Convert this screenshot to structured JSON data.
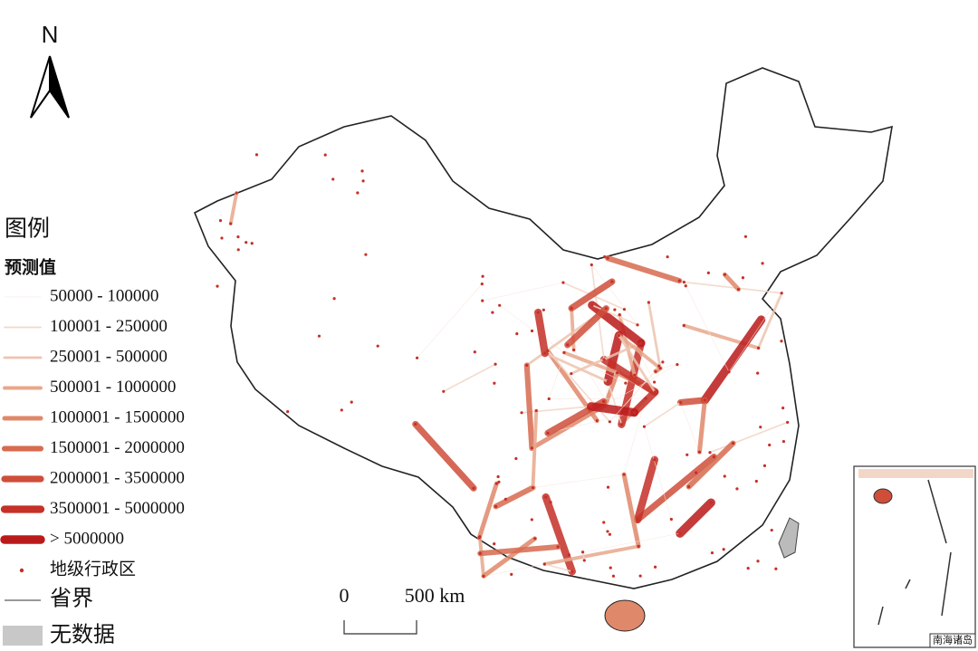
{
  "north_label": "N",
  "legend": {
    "title": "图例",
    "subtitle": "预测值",
    "items": [
      {
        "label": "50000 - 100000",
        "color": "#f6e6dc"
      },
      {
        "label": "100001 - 250000",
        "color": "#f2d7c8"
      },
      {
        "label": "250001 - 500000",
        "color": "#edc4b0"
      },
      {
        "label": "500001 - 1000000",
        "color": "#e8a88c"
      },
      {
        "label": "1000001 - 1500000",
        "color": "#e0886a"
      },
      {
        "label": "1500001 - 2000000",
        "color": "#d86b50"
      },
      {
        "label": "2000001 - 3500000",
        "color": "#cf4e3a"
      },
      {
        "label": "3500001 - 5000000",
        "color": "#c53027"
      },
      {
        "label": "> 5000000",
        "color": "#bb1a1a"
      }
    ],
    "city_label": "地级行政区",
    "border_label": "省界",
    "nodata_label": "无数据"
  },
  "scale": {
    "start": "0",
    "end": "500 km"
  },
  "inset_label": "南海诸岛"
}
